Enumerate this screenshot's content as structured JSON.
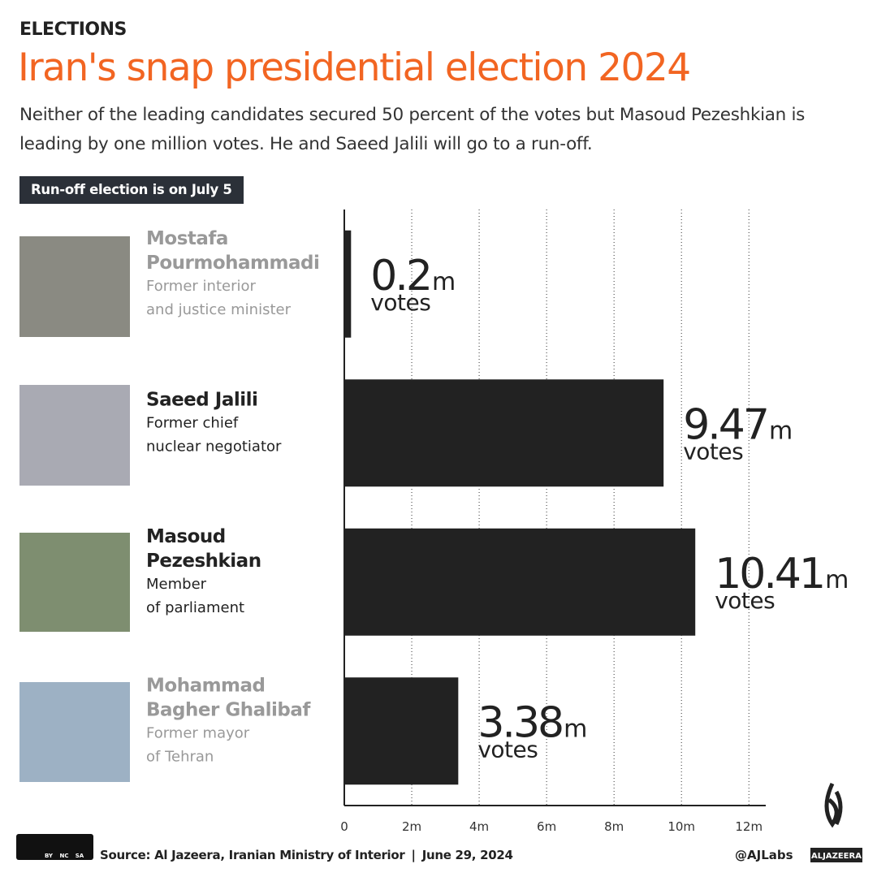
{
  "chart_data": {
    "type": "hbar",
    "kicker": "ELECTIONS",
    "title": "Iran's snap presidential election 2024",
    "subtitle": "Neither of the leading candidates secured 50 percent of the votes but Masoud Pezeshkian is leading by one million votes. He and Saeed Jalili will go to a run-off.",
    "badge": "Run-off election is on July 5",
    "candidates": [
      {
        "name": [
          "Mostafa",
          "Pourmohammadi"
        ],
        "role": [
          "Former interior",
          "and justice minister"
        ],
        "runoff": false
      },
      {
        "name": [
          "Saeed Jalili"
        ],
        "role": [
          "Former chief",
          "nuclear negotiator"
        ],
        "runoff": true
      },
      {
        "name": [
          "Masoud",
          "Pezeshkian"
        ],
        "role": [
          "Member",
          "of parliament"
        ],
        "runoff": true
      },
      {
        "name": [
          "Mohammad",
          "Bagher Ghalibaf"
        ],
        "role": [
          "Former mayor",
          "of Tehran"
        ],
        "runoff": false
      }
    ],
    "values": [
      0.2,
      9.47,
      10.41,
      3.38
    ],
    "value_unit": "m",
    "value_caption": "votes",
    "color": "#222222",
    "xlim": [
      0,
      12.5
    ],
    "xticks": [
      0,
      {
        "value": 2,
        "label": "2m"
      },
      {
        "value": 4,
        "label": "4m"
      },
      {
        "value": 6,
        "label": "6m"
      },
      {
        "value": 8,
        "label": "8m"
      },
      {
        "value": 10,
        "label": "10m"
      },
      {
        "value": 12,
        "label": "12m"
      }
    ],
    "grid": true,
    "license": [
      "BY",
      "NC",
      "SA"
    ],
    "source": "Source: Al Jazeera, Iranian Ministry of Interior",
    "date": "June 29, 2024",
    "handle": "@AJLabs",
    "brand": "ALJAZEERA"
  }
}
